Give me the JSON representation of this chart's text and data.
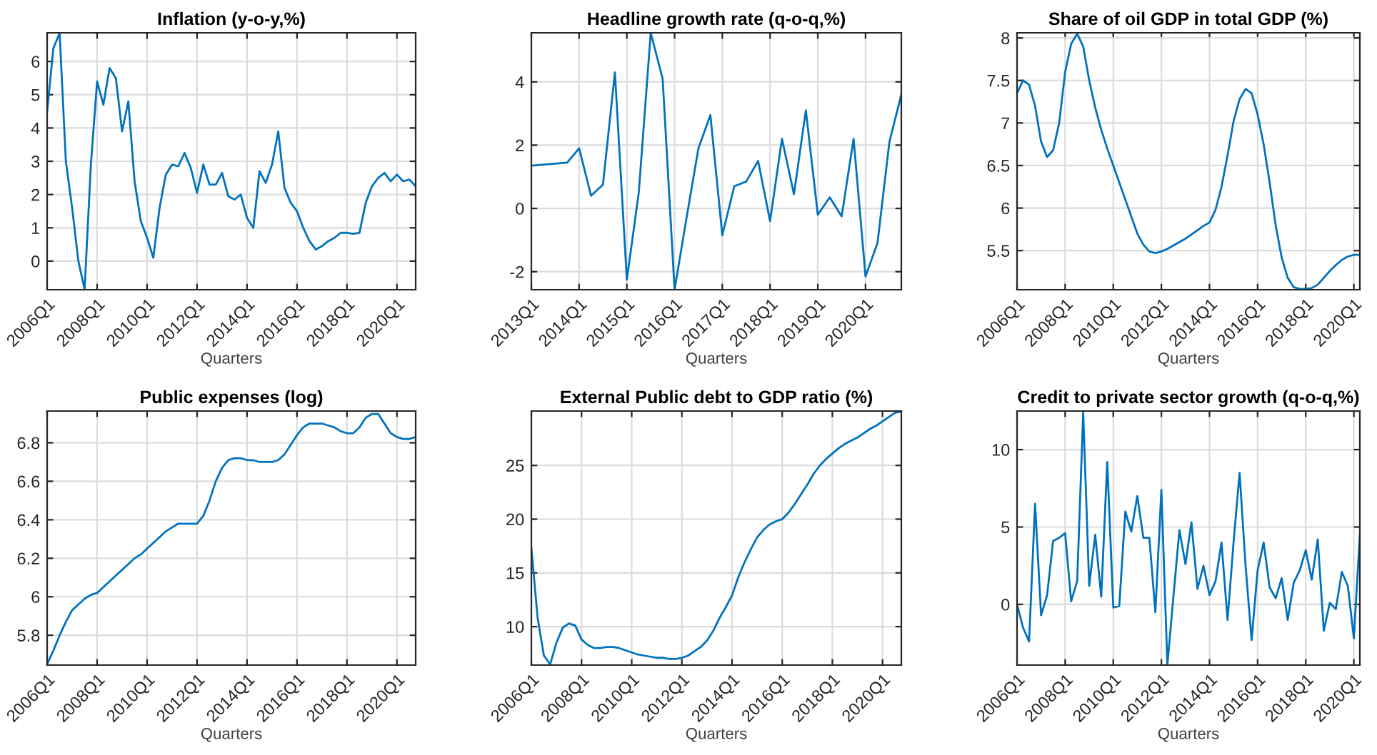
{
  "chart_data": [
    {
      "type": "line",
      "title": "Inflation (y-o-y,%)",
      "xlabel": "Quarters",
      "grid": true,
      "ylim": [
        -0.86,
        6.86
      ],
      "yticks": [
        0,
        1,
        2,
        3,
        4,
        5,
        6
      ],
      "categories": [
        "2006Q1",
        null,
        null,
        null,
        null,
        null,
        null,
        null,
        "2008Q1",
        null,
        null,
        null,
        null,
        null,
        null,
        null,
        "2010Q1",
        null,
        null,
        null,
        null,
        null,
        null,
        null,
        "2012Q1",
        null,
        null,
        null,
        null,
        null,
        null,
        null,
        "2014Q1",
        null,
        null,
        null,
        null,
        null,
        null,
        null,
        "2016Q1",
        null,
        null,
        null,
        null,
        null,
        null,
        null,
        "2018Q1",
        null,
        null,
        null,
        null,
        null,
        null,
        null,
        "2020Q1",
        null,
        null,
        null
      ],
      "series": [
        {
          "color": "#0072bd",
          "values": [
            4.5,
            6.4,
            6.85,
            3.0,
            1.6,
            0.0,
            -0.85,
            2.9,
            5.4,
            4.7,
            5.8,
            5.5,
            3.9,
            4.8,
            2.4,
            1.2,
            0.7,
            0.1,
            1.6,
            2.6,
            2.9,
            2.85,
            3.25,
            2.8,
            2.05,
            2.9,
            2.3,
            2.3,
            2.65,
            1.95,
            1.85,
            2.0,
            1.3,
            1.0,
            2.7,
            2.35,
            2.9,
            3.9,
            2.2,
            1.75,
            1.5,
            1.0,
            0.6,
            0.35,
            0.45,
            0.6,
            0.7,
            0.85,
            0.85,
            0.82,
            0.85,
            1.75,
            2.25,
            2.5,
            2.65,
            2.4,
            2.6,
            2.4,
            2.45,
            2.25
          ]
        }
      ]
    },
    {
      "type": "line",
      "title": "Headline growth rate (q-o-q,%)",
      "xlabel": "Quarters",
      "grid": true,
      "ylim": [
        -2.57,
        5.55
      ],
      "yticks": [
        -2,
        0,
        2,
        4
      ],
      "categories": [
        "2013Q1",
        null,
        null,
        null,
        "2014Q1",
        null,
        null,
        null,
        "2015Q1",
        null,
        null,
        null,
        "2016Q1",
        null,
        null,
        null,
        "2017Q1",
        null,
        null,
        null,
        "2018Q1",
        null,
        null,
        null,
        "2019Q1",
        null,
        null,
        null,
        "2020Q1",
        null,
        null,
        null
      ],
      "series": [
        {
          "color": "#0072bd",
          "values": [
            1.35,
            null,
            null,
            1.45,
            1.9,
            0.4,
            0.75,
            4.3,
            -2.25,
            0.5,
            5.55,
            4.1,
            -2.57,
            -0.3,
            1.9,
            2.95,
            -0.85,
            0.7,
            0.85,
            1.5,
            -0.4,
            2.2,
            0.45,
            3.1,
            -0.2,
            0.35,
            -0.25,
            2.2,
            -2.15,
            -1.1,
            2.1,
            3.6
          ]
        }
      ]
    },
    {
      "type": "line",
      "title": "Share of oil GDP in total GDP (%)",
      "xlabel": "Quarters",
      "grid": true,
      "ylim": [
        5.04,
        8.06
      ],
      "yticks": [
        5.5,
        6,
        6.5,
        7,
        7.5,
        8
      ],
      "categories": [
        "2006Q1",
        null,
        null,
        null,
        null,
        null,
        null,
        null,
        "2008Q1",
        null,
        null,
        null,
        null,
        null,
        null,
        null,
        "2010Q1",
        null,
        null,
        null,
        null,
        null,
        null,
        null,
        "2012Q1",
        null,
        null,
        null,
        null,
        null,
        null,
        null,
        "2014Q1",
        null,
        null,
        null,
        null,
        null,
        null,
        null,
        "2016Q1",
        null,
        null,
        null,
        null,
        null,
        null,
        null,
        "2018Q1",
        null,
        null,
        null,
        null,
        null,
        null,
        null,
        "2020Q1",
        null
      ],
      "series": [
        {
          "color": "#0072bd",
          "values": [
            7.35,
            7.5,
            7.45,
            7.2,
            6.78,
            6.6,
            6.68,
            7.0,
            7.6,
            7.93,
            8.05,
            7.9,
            7.5,
            7.18,
            6.92,
            6.7,
            6.5,
            6.3,
            6.1,
            5.9,
            5.7,
            5.57,
            5.49,
            5.47,
            5.49,
            5.52,
            5.56,
            5.6,
            5.64,
            5.69,
            5.74,
            5.79,
            5.83,
            5.98,
            6.25,
            6.62,
            7.02,
            7.28,
            7.4,
            7.35,
            7.1,
            6.75,
            6.3,
            5.8,
            5.42,
            5.18,
            5.07,
            5.05,
            5.05,
            5.06,
            5.1,
            5.18,
            5.26,
            5.33,
            5.39,
            5.43,
            5.45,
            5.45
          ]
        }
      ]
    },
    {
      "type": "line",
      "title": "Public expenses (log)",
      "xlabel": "Quarters",
      "grid": true,
      "ylim": [
        5.645,
        6.965
      ],
      "yticks": [
        5.8,
        6,
        6.2,
        6.4,
        6.6,
        6.8
      ],
      "categories": [
        "2006Q1",
        null,
        null,
        null,
        null,
        null,
        null,
        null,
        "2008Q1",
        null,
        null,
        null,
        null,
        null,
        null,
        null,
        "2010Q1",
        null,
        null,
        null,
        null,
        null,
        null,
        null,
        "2012Q1",
        null,
        null,
        null,
        null,
        null,
        null,
        null,
        "2014Q1",
        null,
        null,
        null,
        null,
        null,
        null,
        null,
        "2016Q1",
        null,
        null,
        null,
        null,
        null,
        null,
        null,
        "2018Q1",
        null,
        null,
        null,
        null,
        null,
        null,
        null,
        "2020Q1",
        null,
        null,
        null
      ],
      "series": [
        {
          "color": "#0072bd",
          "values": [
            5.65,
            5.72,
            5.8,
            5.87,
            5.93,
            5.96,
            5.99,
            6.01,
            6.02,
            6.05,
            6.08,
            6.11,
            6.14,
            6.17,
            6.2,
            6.22,
            6.25,
            6.28,
            6.31,
            6.34,
            6.36,
            6.38,
            6.38,
            6.38,
            6.38,
            6.42,
            6.5,
            6.6,
            6.67,
            6.71,
            6.72,
            6.72,
            6.71,
            6.71,
            6.7,
            6.7,
            6.7,
            6.71,
            6.74,
            6.79,
            6.84,
            6.88,
            6.9,
            6.9,
            6.9,
            6.89,
            6.88,
            6.86,
            6.85,
            6.85,
            6.88,
            6.93,
            6.95,
            6.95,
            6.9,
            6.85,
            6.83,
            6.82,
            6.82,
            6.83
          ]
        }
      ]
    },
    {
      "type": "line",
      "title": "External Public debt to GDP ratio (%)",
      "xlabel": "Quarters",
      "grid": true,
      "ylim": [
        6.42,
        30.06
      ],
      "yticks": [
        10,
        15,
        20,
        25
      ],
      "categories": [
        "2006Q1",
        null,
        null,
        null,
        null,
        null,
        null,
        null,
        "2008Q1",
        null,
        null,
        null,
        null,
        null,
        null,
        null,
        "2010Q1",
        null,
        null,
        null,
        null,
        null,
        null,
        null,
        "2012Q1",
        null,
        null,
        null,
        null,
        null,
        null,
        null,
        "2014Q1",
        null,
        null,
        null,
        null,
        null,
        null,
        null,
        "2016Q1",
        null,
        null,
        null,
        null,
        null,
        null,
        null,
        "2018Q1",
        null,
        null,
        null,
        null,
        null,
        null,
        null,
        "2020Q1",
        null,
        null,
        null
      ],
      "series": [
        {
          "color": "#0072bd",
          "values": [
            17.3,
            10.8,
            7.3,
            6.5,
            8.5,
            9.9,
            10.3,
            10.1,
            8.8,
            8.3,
            8.0,
            8.0,
            8.1,
            8.1,
            8.0,
            7.8,
            7.6,
            7.4,
            7.3,
            7.2,
            7.1,
            7.1,
            7.0,
            7.0,
            7.1,
            7.3,
            7.7,
            8.1,
            8.7,
            9.6,
            10.8,
            11.8,
            12.9,
            14.6,
            16.0,
            17.2,
            18.3,
            19.0,
            19.5,
            19.8,
            20.0,
            20.6,
            21.4,
            22.3,
            23.2,
            24.2,
            25.0,
            25.6,
            26.1,
            26.6,
            27.0,
            27.3,
            27.6,
            28.0,
            28.4,
            28.7,
            29.1,
            29.5,
            29.9,
            30.0
          ]
        }
      ]
    },
    {
      "type": "line",
      "title": "Credit to private sector growth (q-o-q,%)",
      "xlabel": "Quarters",
      "grid": true,
      "ylim": [
        -3.92,
        12.49
      ],
      "yticks": [
        0,
        5,
        10
      ],
      "categories": [
        "2006Q1",
        null,
        null,
        null,
        null,
        null,
        null,
        null,
        "2008Q1",
        null,
        null,
        null,
        null,
        null,
        null,
        null,
        "2010Q1",
        null,
        null,
        null,
        null,
        null,
        null,
        null,
        "2012Q1",
        null,
        null,
        null,
        null,
        null,
        null,
        null,
        "2014Q1",
        null,
        null,
        null,
        null,
        null,
        null,
        null,
        "2016Q1",
        null,
        null,
        null,
        null,
        null,
        null,
        null,
        "2018Q1",
        null,
        null,
        null,
        null,
        null,
        null,
        null,
        "2020Q1",
        null
      ],
      "series": [
        {
          "color": "#0072bd",
          "values": [
            0.0,
            -1.5,
            -2.4,
            6.5,
            -0.7,
            0.6,
            4.1,
            4.3,
            4.6,
            0.2,
            1.5,
            12.4,
            1.2,
            4.5,
            0.5,
            9.2,
            -0.2,
            -0.1,
            6.0,
            4.7,
            7.0,
            4.3,
            4.3,
            -0.5,
            7.4,
            -3.9,
            0.5,
            4.8,
            2.6,
            5.3,
            1.0,
            2.5,
            0.6,
            1.5,
            4.0,
            -1.0,
            4.0,
            8.5,
            2.5,
            -2.3,
            2.2,
            4.0,
            1.1,
            0.4,
            1.7,
            -1.0,
            1.4,
            2.2,
            3.5,
            1.6,
            4.2,
            -1.7,
            0.1,
            -0.3,
            2.1,
            1.2,
            -2.2,
            4.5
          ]
        }
      ]
    }
  ]
}
